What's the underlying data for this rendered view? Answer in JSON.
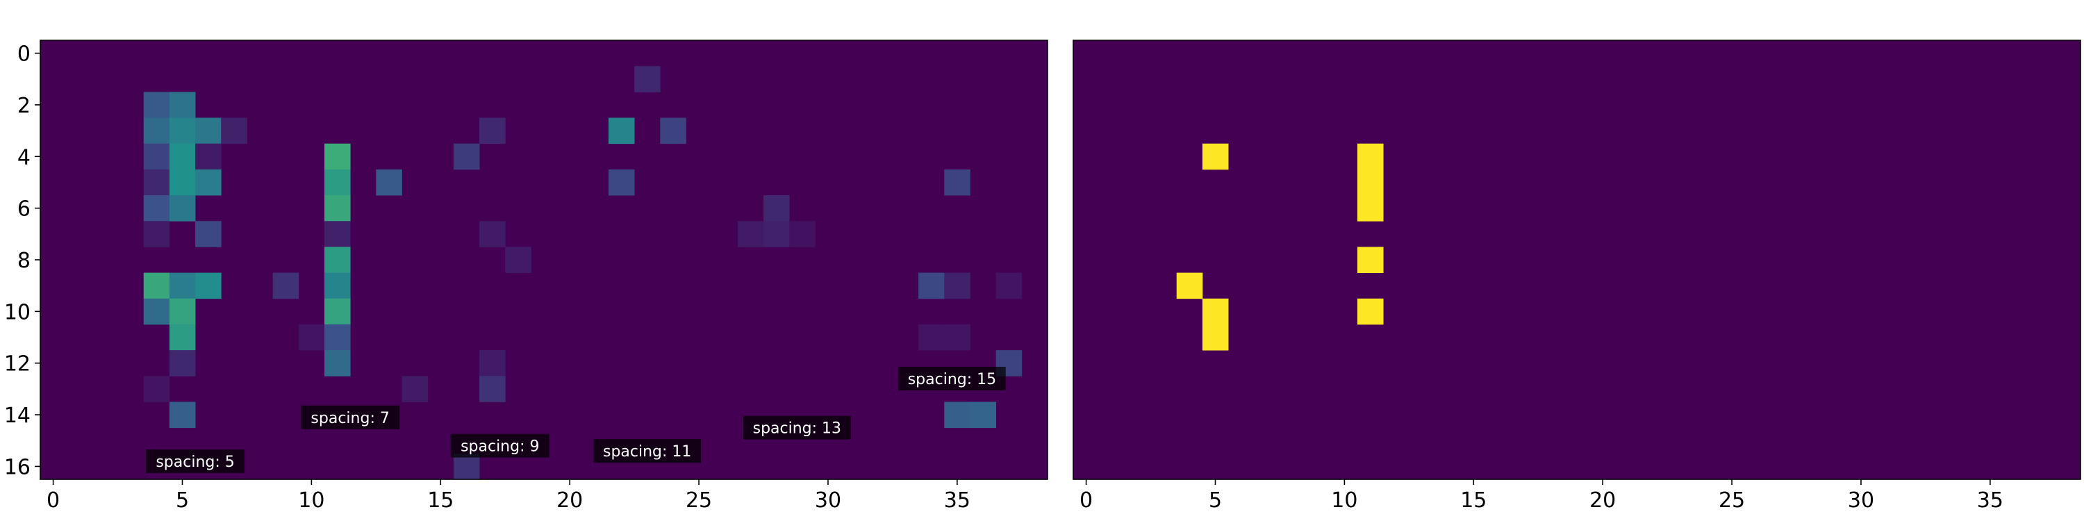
{
  "chart_data": [
    {
      "type": "heatmap",
      "colormap": "viridis",
      "x_range": [
        -0.5,
        38.5
      ],
      "y_range": [
        16.5,
        -0.5
      ],
      "x_ticks": [
        0,
        5,
        10,
        15,
        20,
        25,
        30,
        35
      ],
      "y_ticks": [
        0,
        2,
        4,
        6,
        8,
        10,
        12,
        14,
        16
      ],
      "cells": [
        {
          "x": 23,
          "y": 1,
          "v": 0.12
        },
        {
          "x": 4,
          "y": 2,
          "v": 0.28
        },
        {
          "x": 5,
          "y": 2,
          "v": 0.38
        },
        {
          "x": 4,
          "y": 3,
          "v": 0.35
        },
        {
          "x": 5,
          "y": 3,
          "v": 0.45
        },
        {
          "x": 6,
          "y": 3,
          "v": 0.4
        },
        {
          "x": 7,
          "y": 3,
          "v": 0.1
        },
        {
          "x": 17,
          "y": 3,
          "v": 0.12
        },
        {
          "x": 22,
          "y": 3,
          "v": 0.45
        },
        {
          "x": 24,
          "y": 3,
          "v": 0.2
        },
        {
          "x": 4,
          "y": 4,
          "v": 0.2
        },
        {
          "x": 5,
          "y": 4,
          "v": 0.5
        },
        {
          "x": 6,
          "y": 4,
          "v": 0.08
        },
        {
          "x": 11,
          "y": 4,
          "v": 0.62
        },
        {
          "x": 16,
          "y": 4,
          "v": 0.18
        },
        {
          "x": 4,
          "y": 5,
          "v": 0.12
        },
        {
          "x": 5,
          "y": 5,
          "v": 0.5
        },
        {
          "x": 6,
          "y": 5,
          "v": 0.42
        },
        {
          "x": 11,
          "y": 5,
          "v": 0.55
        },
        {
          "x": 13,
          "y": 5,
          "v": 0.28
        },
        {
          "x": 22,
          "y": 5,
          "v": 0.22
        },
        {
          "x": 35,
          "y": 5,
          "v": 0.2
        },
        {
          "x": 4,
          "y": 6,
          "v": 0.25
        },
        {
          "x": 5,
          "y": 6,
          "v": 0.4
        },
        {
          "x": 11,
          "y": 6,
          "v": 0.6
        },
        {
          "x": 28,
          "y": 6,
          "v": 0.12
        },
        {
          "x": 4,
          "y": 7,
          "v": 0.08
        },
        {
          "x": 6,
          "y": 7,
          "v": 0.22
        },
        {
          "x": 11,
          "y": 7,
          "v": 0.1
        },
        {
          "x": 17,
          "y": 7,
          "v": 0.08
        },
        {
          "x": 27,
          "y": 7,
          "v": 0.08
        },
        {
          "x": 28,
          "y": 7,
          "v": 0.1
        },
        {
          "x": 29,
          "y": 7,
          "v": 0.05
        },
        {
          "x": 11,
          "y": 8,
          "v": 0.55
        },
        {
          "x": 18,
          "y": 8,
          "v": 0.08
        },
        {
          "x": 4,
          "y": 9,
          "v": 0.6
        },
        {
          "x": 5,
          "y": 9,
          "v": 0.42
        },
        {
          "x": 6,
          "y": 9,
          "v": 0.48
        },
        {
          "x": 9,
          "y": 9,
          "v": 0.15
        },
        {
          "x": 11,
          "y": 9,
          "v": 0.45
        },
        {
          "x": 34,
          "y": 9,
          "v": 0.22
        },
        {
          "x": 35,
          "y": 9,
          "v": 0.1
        },
        {
          "x": 37,
          "y": 9,
          "v": 0.06
        },
        {
          "x": 4,
          "y": 10,
          "v": 0.35
        },
        {
          "x": 5,
          "y": 10,
          "v": 0.58
        },
        {
          "x": 11,
          "y": 10,
          "v": 0.58
        },
        {
          "x": 5,
          "y": 11,
          "v": 0.55
        },
        {
          "x": 10,
          "y": 11,
          "v": 0.06
        },
        {
          "x": 11,
          "y": 11,
          "v": 0.25
        },
        {
          "x": 34,
          "y": 11,
          "v": 0.06
        },
        {
          "x": 35,
          "y": 11,
          "v": 0.06
        },
        {
          "x": 5,
          "y": 12,
          "v": 0.12
        },
        {
          "x": 11,
          "y": 12,
          "v": 0.35
        },
        {
          "x": 17,
          "y": 12,
          "v": 0.08
        },
        {
          "x": 37,
          "y": 12,
          "v": 0.2
        },
        {
          "x": 4,
          "y": 13,
          "v": 0.06
        },
        {
          "x": 14,
          "y": 13,
          "v": 0.08
        },
        {
          "x": 17,
          "y": 13,
          "v": 0.15
        },
        {
          "x": 5,
          "y": 14,
          "v": 0.3
        },
        {
          "x": 35,
          "y": 14,
          "v": 0.3
        },
        {
          "x": 36,
          "y": 14,
          "v": 0.32
        },
        {
          "x": 16,
          "y": 16,
          "v": 0.15
        }
      ],
      "annotations": [
        {
          "text": "spacing: 5",
          "x": 5.5,
          "y": 15.8
        },
        {
          "text": "spacing: 7",
          "x": 11.5,
          "y": 14.1
        },
        {
          "text": "spacing: 9",
          "x": 17.3,
          "y": 15.2
        },
        {
          "text": "spacing: 11",
          "x": 23.0,
          "y": 15.4
        },
        {
          "text": "spacing: 13",
          "x": 28.8,
          "y": 14.5
        },
        {
          "text": "spacing: 15",
          "x": 34.8,
          "y": 12.6
        }
      ]
    },
    {
      "type": "heatmap",
      "colormap": "viridis",
      "x_range": [
        -0.5,
        38.5
      ],
      "y_range": [
        16.5,
        -0.5
      ],
      "x_ticks": [
        0,
        5,
        10,
        15,
        20,
        25,
        30,
        35
      ],
      "y_ticks": [],
      "cells": [
        {
          "x": 5,
          "y": 4,
          "v": 1
        },
        {
          "x": 11,
          "y": 4,
          "v": 1
        },
        {
          "x": 11,
          "y": 5,
          "v": 1
        },
        {
          "x": 11,
          "y": 6,
          "v": 1
        },
        {
          "x": 11,
          "y": 8,
          "v": 1
        },
        {
          "x": 4,
          "y": 9,
          "v": 1
        },
        {
          "x": 5,
          "y": 10,
          "v": 1
        },
        {
          "x": 11,
          "y": 10,
          "v": 1
        },
        {
          "x": 5,
          "y": 11,
          "v": 1
        }
      ],
      "annotations": []
    }
  ]
}
